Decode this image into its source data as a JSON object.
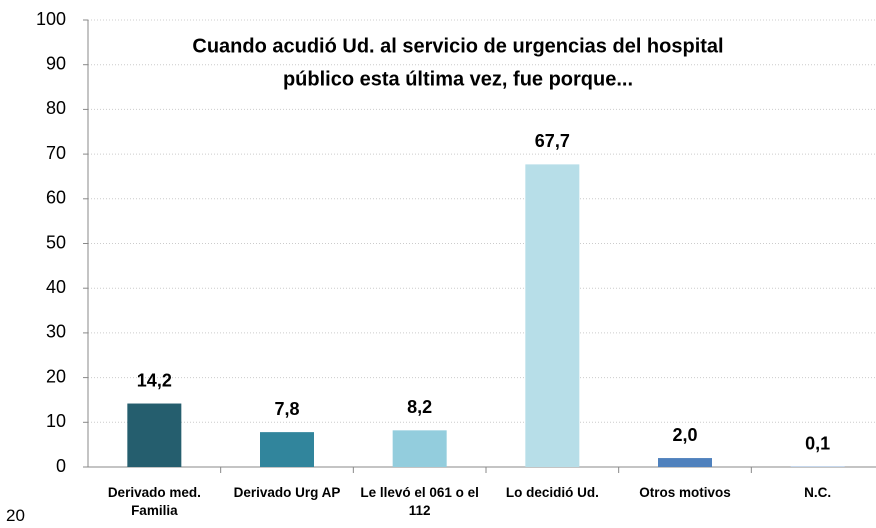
{
  "chart_data": {
    "type": "bar",
    "title": [
      "Cuando acudió Ud. al servicio de urgencias del hospital",
      "público esta última vez, fue porque..."
    ],
    "categories": [
      "Derivado med. Familia",
      "Derivado Urg AP",
      "Le llevó el 061 o el 112",
      "Lo decidió Ud.",
      "Otros motivos",
      "N.C."
    ],
    "values": [
      14.2,
      7.8,
      8.2,
      67.7,
      2.0,
      0.1
    ],
    "value_labels": [
      "14,2",
      "7,8",
      "8,2",
      "67,7",
      "2,0",
      "0,1"
    ],
    "colors": [
      "#255e6e",
      "#31859c",
      "#93cddd",
      "#b7dee8",
      "#4f81bd",
      "#8eb4e3"
    ],
    "ylim": [
      0,
      100
    ],
    "yticks": [
      0,
      10,
      20,
      30,
      40,
      50,
      60,
      70,
      80,
      90,
      100
    ],
    "grid": true
  },
  "page_number": "20"
}
